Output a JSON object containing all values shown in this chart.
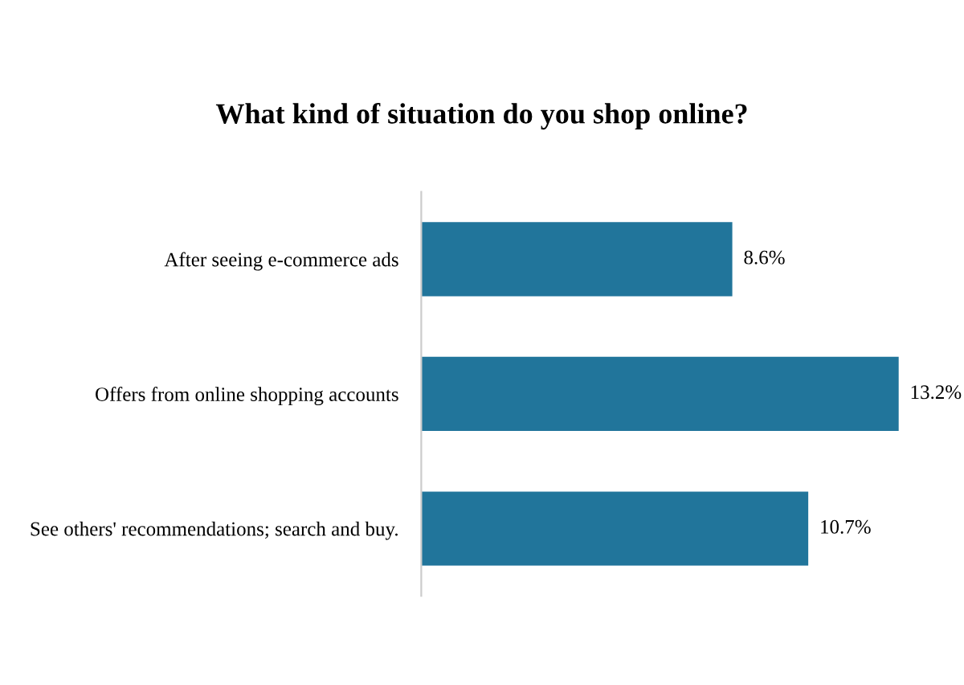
{
  "chart_data": {
    "type": "bar",
    "orientation": "horizontal",
    "title": "What kind of situation do you shop online?",
    "categories": [
      "After seeing e-commerce ads",
      "Offers from online shopping accounts",
      "See others' recommendations; search and buy."
    ],
    "series": [
      {
        "color": "#21759b",
        "values": [
          8.6,
          13.2,
          10.7
        ],
        "value_labels": [
          "8.6%",
          "13.2%",
          "10.7%"
        ]
      }
    ],
    "grid": false,
    "legend": false
  }
}
